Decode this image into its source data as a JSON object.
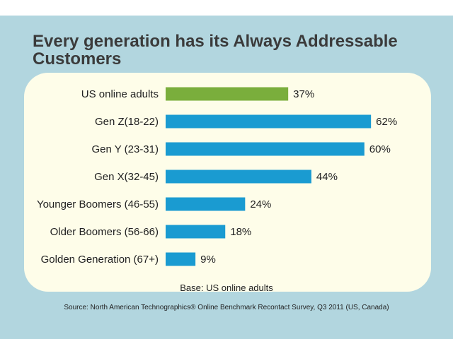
{
  "title": "Every generation has its Always Addressable Customers",
  "base_note": "Base: US online adults",
  "source_note": "Source: North American Technographics® Online Benchmark Recontact Survey, Q3 2011 (US, Canada)",
  "colors": {
    "background": "#b2d6df",
    "panel": "#fefde9",
    "highlight_bar": "#7aae3c",
    "bar": "#1a9bd1"
  },
  "chart_data": {
    "type": "bar",
    "orientation": "horizontal",
    "categories": [
      "US online adults",
      "Gen Z(18-22)",
      "Gen Y (23-31)",
      "Gen X(32-45)",
      "Younger Boomers (46-55)",
      "Older Boomers (56-66)",
      "Golden Generation (67+)"
    ],
    "values": [
      37,
      62,
      60,
      44,
      24,
      18,
      9
    ],
    "value_labels": [
      "37%",
      "62%",
      "60%",
      "44%",
      "24%",
      "18%",
      "9%"
    ],
    "unit": "%",
    "highlight_index": 0,
    "xlim": [
      0,
      100
    ],
    "grid": false,
    "legend": "none"
  }
}
